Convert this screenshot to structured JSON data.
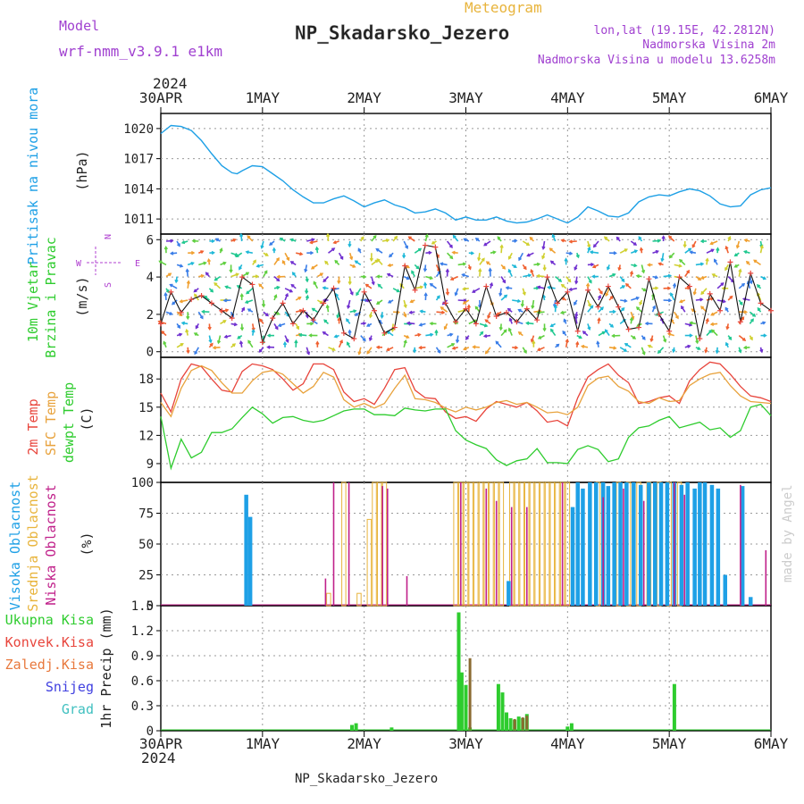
{
  "header": {
    "model_label": "Model",
    "model_name": "wrf-nmm_v3.9.1  e1km",
    "meteogram_label": "Meteogram",
    "station": "NP_Skadarsko_Jezero",
    "lonlat": "lon,lat (19.15E, 42.2812N)",
    "altitude": "Nadmorska Visina 2m",
    "model_altitude": "Nadmorska Visina u modelu 13.6258m",
    "footer_station": "NP_Skadarsko_Jezero",
    "watermark": "made by Angel"
  },
  "time_axis": {
    "year": "2024",
    "labels": [
      "30APR",
      "1MAY",
      "2MAY",
      "3MAY",
      "4MAY",
      "5MAY",
      "6MAY"
    ]
  },
  "colors": {
    "pressure": "#1ea0e6",
    "t2m": "#e8453c",
    "tsfc": "#e8a23c",
    "dewpoint": "#2ecc2e",
    "wind_speed": "#111111",
    "wind_marker": "#e8453c",
    "cloud_high": "#1ea0e6",
    "cloud_mid": "#e8b43c",
    "cloud_low": "#c0208a",
    "precip_total": "#2ecc2e",
    "precip_conv": "#e8453c",
    "precip_frozen": "#e8783c",
    "precip_snow": "#4040e0",
    "precip_graupel": "#40c0c0",
    "compass": "#b040d0",
    "model_purple": "#a040d0"
  },
  "chart_data": [
    {
      "type": "line",
      "panel": "pressure",
      "ylabel_main": "Pritisak na nivou mora",
      "ylabel_unit": "(hPa)",
      "yticks": [
        1011,
        1014,
        1017,
        1020
      ],
      "ylim": [
        1009.5,
        1021.5
      ],
      "x_days": [
        0,
        0.1,
        0.2,
        0.3,
        0.4,
        0.5,
        0.6,
        0.7,
        0.75,
        0.8,
        0.9,
        1.0,
        1.1,
        1.2,
        1.3,
        1.4,
        1.5,
        1.6,
        1.7,
        1.8,
        1.9,
        2.0,
        2.1,
        2.2,
        2.3,
        2.4,
        2.5,
        2.6,
        2.7,
        2.8,
        2.9,
        3.0,
        3.1,
        3.2,
        3.3,
        3.4,
        3.5,
        3.6,
        3.7,
        3.8,
        3.9,
        4.0,
        4.1,
        4.2,
        4.3,
        4.4,
        4.5,
        4.6,
        4.7,
        4.8,
        4.9,
        5.0,
        5.1,
        5.2,
        5.3,
        5.4,
        5.5,
        5.6,
        5.7,
        5.8,
        5.9,
        6.0
      ],
      "series": [
        {
          "key": "pressure",
          "values": [
            1019.5,
            1020.3,
            1020.2,
            1019.8,
            1018.8,
            1017.5,
            1016.3,
            1015.6,
            1015.5,
            1015.8,
            1016.3,
            1016.2,
            1015.5,
            1014.8,
            1013.9,
            1013.2,
            1012.6,
            1012.6,
            1013.0,
            1013.3,
            1012.8,
            1012.2,
            1012.6,
            1012.9,
            1012.4,
            1012.1,
            1011.6,
            1011.7,
            1012.0,
            1011.6,
            1010.9,
            1011.2,
            1010.9,
            1010.9,
            1011.2,
            1010.8,
            1010.6,
            1010.7,
            1011.0,
            1011.4,
            1011.0,
            1010.6,
            1011.2,
            1012.2,
            1011.8,
            1011.3,
            1011.2,
            1011.6,
            1012.7,
            1013.2,
            1013.4,
            1013.3,
            1013.7,
            1014.0,
            1013.8,
            1013.3,
            1012.5,
            1012.2,
            1012.3,
            1013.4,
            1013.9,
            1014.1
          ]
        }
      ]
    },
    {
      "type": "line",
      "panel": "wind",
      "ylabel_main": "10m Vjetar",
      "ylabel_sub": "Brzina i Pravac",
      "ylabel_unit": "(m/s)",
      "compass": [
        "N",
        "E",
        "S",
        "W"
      ],
      "yticks": [
        0,
        2,
        4,
        6
      ],
      "ylim": [
        -0.3,
        6.3
      ],
      "x_days": [
        0,
        0.1,
        0.2,
        0.3,
        0.4,
        0.5,
        0.6,
        0.7,
        0.8,
        0.9,
        1.0,
        1.1,
        1.2,
        1.3,
        1.4,
        1.5,
        1.6,
        1.7,
        1.8,
        1.9,
        2.0,
        2.1,
        2.2,
        2.3,
        2.4,
        2.5,
        2.6,
        2.7,
        2.8,
        2.9,
        3.0,
        3.1,
        3.2,
        3.3,
        3.4,
        3.5,
        3.6,
        3.7,
        3.8,
        3.9,
        4.0,
        4.1,
        4.2,
        4.3,
        4.4,
        4.5,
        4.6,
        4.7,
        4.8,
        4.9,
        5.0,
        5.1,
        5.2,
        5.3,
        5.4,
        5.5,
        5.6,
        5.7,
        5.8,
        5.9,
        6.0
      ],
      "series": [
        {
          "key": "wind_speed",
          "values": [
            1.5,
            3.2,
            2.1,
            2.8,
            3.0,
            2.6,
            2.2,
            1.8,
            4.0,
            3.6,
            0.5,
            1.8,
            2.6,
            1.5,
            2.2,
            1.7,
            2.6,
            3.4,
            1.0,
            0.7,
            3.2,
            2.2,
            1.0,
            1.3,
            4.6,
            3.3,
            5.7,
            5.6,
            2.6,
            1.6,
            2.3,
            1.5,
            3.5,
            1.9,
            2.1,
            1.6,
            2.3,
            1.7,
            4.0,
            2.6,
            3.2,
            1.1,
            3.3,
            2.4,
            3.5,
            2.4,
            1.2,
            1.3,
            3.9,
            2.0,
            1.1,
            4.0,
            3.5,
            0.7,
            3.1,
            2.2,
            4.8,
            1.6,
            4.2,
            2.6,
            2.2
          ]
        }
      ]
    },
    {
      "type": "line",
      "panel": "temperature",
      "ylabel_t2m": "2m Temp",
      "ylabel_tsfc": "SFC Temp",
      "ylabel_dew": "dewpt Temp",
      "ylabel_unit": "(C)",
      "yticks": [
        9,
        12,
        15,
        18
      ],
      "ylim": [
        7,
        20.3
      ],
      "x_days": [
        0,
        0.1,
        0.2,
        0.3,
        0.4,
        0.5,
        0.6,
        0.7,
        0.8,
        0.9,
        1.0,
        1.1,
        1.2,
        1.3,
        1.4,
        1.5,
        1.6,
        1.7,
        1.8,
        1.9,
        2.0,
        2.1,
        2.2,
        2.3,
        2.4,
        2.5,
        2.6,
        2.7,
        2.8,
        2.9,
        3.0,
        3.1,
        3.2,
        3.3,
        3.4,
        3.5,
        3.6,
        3.7,
        3.8,
        3.9,
        4.0,
        4.1,
        4.2,
        4.3,
        4.4,
        4.5,
        4.6,
        4.7,
        4.8,
        4.9,
        5.0,
        5.1,
        5.2,
        5.3,
        5.4,
        5.5,
        5.6,
        5.7,
        5.8,
        5.9,
        6.0
      ],
      "series": [
        {
          "key": "t2m",
          "values": [
            16.5,
            14.5,
            18.0,
            19.6,
            19.3,
            18.0,
            16.8,
            16.6,
            18.8,
            19.6,
            19.4,
            19.0,
            18.0,
            16.8,
            17.5,
            19.6,
            19.6,
            19.0,
            16.6,
            15.6,
            15.9,
            15.3,
            17.0,
            19.0,
            19.2,
            16.8,
            16.0,
            15.9,
            14.5,
            13.8,
            14.0,
            13.5,
            14.8,
            15.6,
            15.3,
            15.0,
            15.5,
            14.6,
            13.4,
            13.6,
            13.0,
            16.0,
            18.2,
            19.0,
            19.6,
            18.4,
            17.6,
            15.4,
            15.6,
            16.0,
            16.2,
            15.4,
            17.8,
            19.0,
            19.8,
            19.6,
            18.5,
            17.2,
            16.2,
            16.0,
            15.6
          ]
        },
        {
          "key": "tsfc",
          "values": [
            15.5,
            14.0,
            17.0,
            18.9,
            19.4,
            18.9,
            17.6,
            16.5,
            16.5,
            17.8,
            18.7,
            18.9,
            18.5,
            17.5,
            16.5,
            17.2,
            18.7,
            18.2,
            15.8,
            15.0,
            15.4,
            14.9,
            15.4,
            17.0,
            18.4,
            15.9,
            15.8,
            15.5,
            14.9,
            14.5,
            15.0,
            14.7,
            15.0,
            15.5,
            15.7,
            15.3,
            15.5,
            15.0,
            14.4,
            14.5,
            14.2,
            15.0,
            17.3,
            18.1,
            18.3,
            17.2,
            16.7,
            15.6,
            15.4,
            16.0,
            15.6,
            15.7,
            17.3,
            18.0,
            18.5,
            18.7,
            17.3,
            16.2,
            15.6,
            15.5,
            15.4
          ]
        },
        {
          "key": "dewpoint",
          "values": [
            14.0,
            8.5,
            11.6,
            9.6,
            10.2,
            12.3,
            12.3,
            12.7,
            13.9,
            15.0,
            14.3,
            13.3,
            13.9,
            14.0,
            13.6,
            13.4,
            13.6,
            14.1,
            14.6,
            14.8,
            14.8,
            14.2,
            14.2,
            14.1,
            14.9,
            14.7,
            14.6,
            14.8,
            14.8,
            12.5,
            11.5,
            11.0,
            10.6,
            9.4,
            8.8,
            9.3,
            9.5,
            10.6,
            9.1,
            9.1,
            9.0,
            10.5,
            10.9,
            10.5,
            9.2,
            9.5,
            11.8,
            12.8,
            13.0,
            13.6,
            14.0,
            12.8,
            13.1,
            13.4,
            12.6,
            12.8,
            11.8,
            12.5,
            15.0,
            15.3,
            14.1
          ]
        }
      ]
    },
    {
      "type": "bar",
      "panel": "cloud_cover",
      "ylabel_high": "Visoka Oblacnost",
      "ylabel_mid": "Srednja Oblacnost",
      "ylabel_low": "Niska Oblacnost",
      "ylabel_unit": "(%)",
      "yticks": [
        0,
        25,
        50,
        75,
        100
      ],
      "ylim": [
        0,
        100
      ],
      "series": [
        {
          "key": "cloud_high",
          "x": [
            0.84,
            0.88,
            3.42,
            4.05,
            4.1,
            4.15,
            4.22,
            4.28,
            4.35,
            4.4,
            4.46,
            4.52,
            4.58,
            4.65,
            4.72,
            4.8,
            4.86,
            4.92,
            4.98,
            5.05,
            5.12,
            5.18,
            5.25,
            5.3,
            5.35,
            5.42,
            5.48,
            5.55,
            5.72,
            5.8
          ],
          "values": [
            90,
            72,
            20,
            80,
            100,
            95,
            100,
            100,
            100,
            97,
            100,
            100,
            100,
            100,
            98,
            100,
            100,
            100,
            100,
            100,
            98,
            100,
            95,
            100,
            100,
            98,
            95,
            25,
            97,
            7
          ]
        },
        {
          "key": "cloud_mid",
          "x": [
            1.65,
            1.8,
            1.95,
            2.05,
            2.1,
            2.15,
            2.2,
            2.9,
            2.95,
            3.0,
            3.05,
            3.1,
            3.15,
            3.2,
            3.25,
            3.3,
            3.35,
            3.45,
            3.5,
            3.55,
            3.6,
            3.65,
            3.7,
            3.75,
            3.8,
            3.85,
            3.9,
            3.95,
            4.0,
            4.3,
            4.5,
            4.6,
            4.7,
            4.8,
            4.9,
            5.0,
            5.1
          ],
          "values": [
            10,
            100,
            10,
            70,
            100,
            100,
            100,
            100,
            100,
            100,
            100,
            100,
            100,
            100,
            100,
            100,
            100,
            100,
            100,
            100,
            100,
            100,
            100,
            100,
            100,
            100,
            100,
            100,
            100,
            100,
            100,
            100,
            100,
            100,
            100,
            100,
            100
          ]
        },
        {
          "key": "cloud_low",
          "x": [
            1.62,
            1.7,
            1.85,
            2.18,
            2.23,
            2.42,
            2.95,
            3.2,
            3.3,
            3.45,
            3.6,
            3.95,
            4.35,
            4.55,
            4.75,
            5.05,
            5.15,
            5.7,
            5.95
          ],
          "values": [
            22,
            100,
            100,
            97,
            95,
            24,
            100,
            95,
            85,
            80,
            80,
            100,
            88,
            95,
            85,
            100,
            90,
            98,
            45
          ]
        }
      ]
    },
    {
      "type": "bar",
      "panel": "precipitation",
      "legend": [
        "Ukupna Kisa",
        "Konvek.Kisa",
        "Zaledj.Kisa",
        "Snijeg",
        "Grad"
      ],
      "ylabel_unit": "1hr Precip (mm)",
      "yticks": [
        0,
        0.3,
        0.6,
        0.9,
        1.2,
        1.5
      ],
      "ylim": [
        0,
        1.5
      ],
      "series": [
        {
          "key": "precip_total",
          "x": [
            1.88,
            1.92,
            2.27,
            2.93,
            2.96,
            3.0,
            3.04,
            3.32,
            3.36,
            3.4,
            3.44,
            3.48,
            3.52,
            3.56,
            3.6,
            4.0,
            4.04,
            5.05
          ],
          "values": [
            0.07,
            0.09,
            0.04,
            1.42,
            0.7,
            0.55,
            0.04,
            0.56,
            0.46,
            0.22,
            0.15,
            0.13,
            0.17,
            0.15,
            0.2,
            0.05,
            0.09,
            0.56
          ]
        },
        {
          "key": "precip_conv",
          "x": [
            3.04,
            3.48,
            3.56,
            3.6
          ],
          "values": [
            0.87,
            0.14,
            0.16,
            0.18
          ]
        }
      ]
    }
  ]
}
